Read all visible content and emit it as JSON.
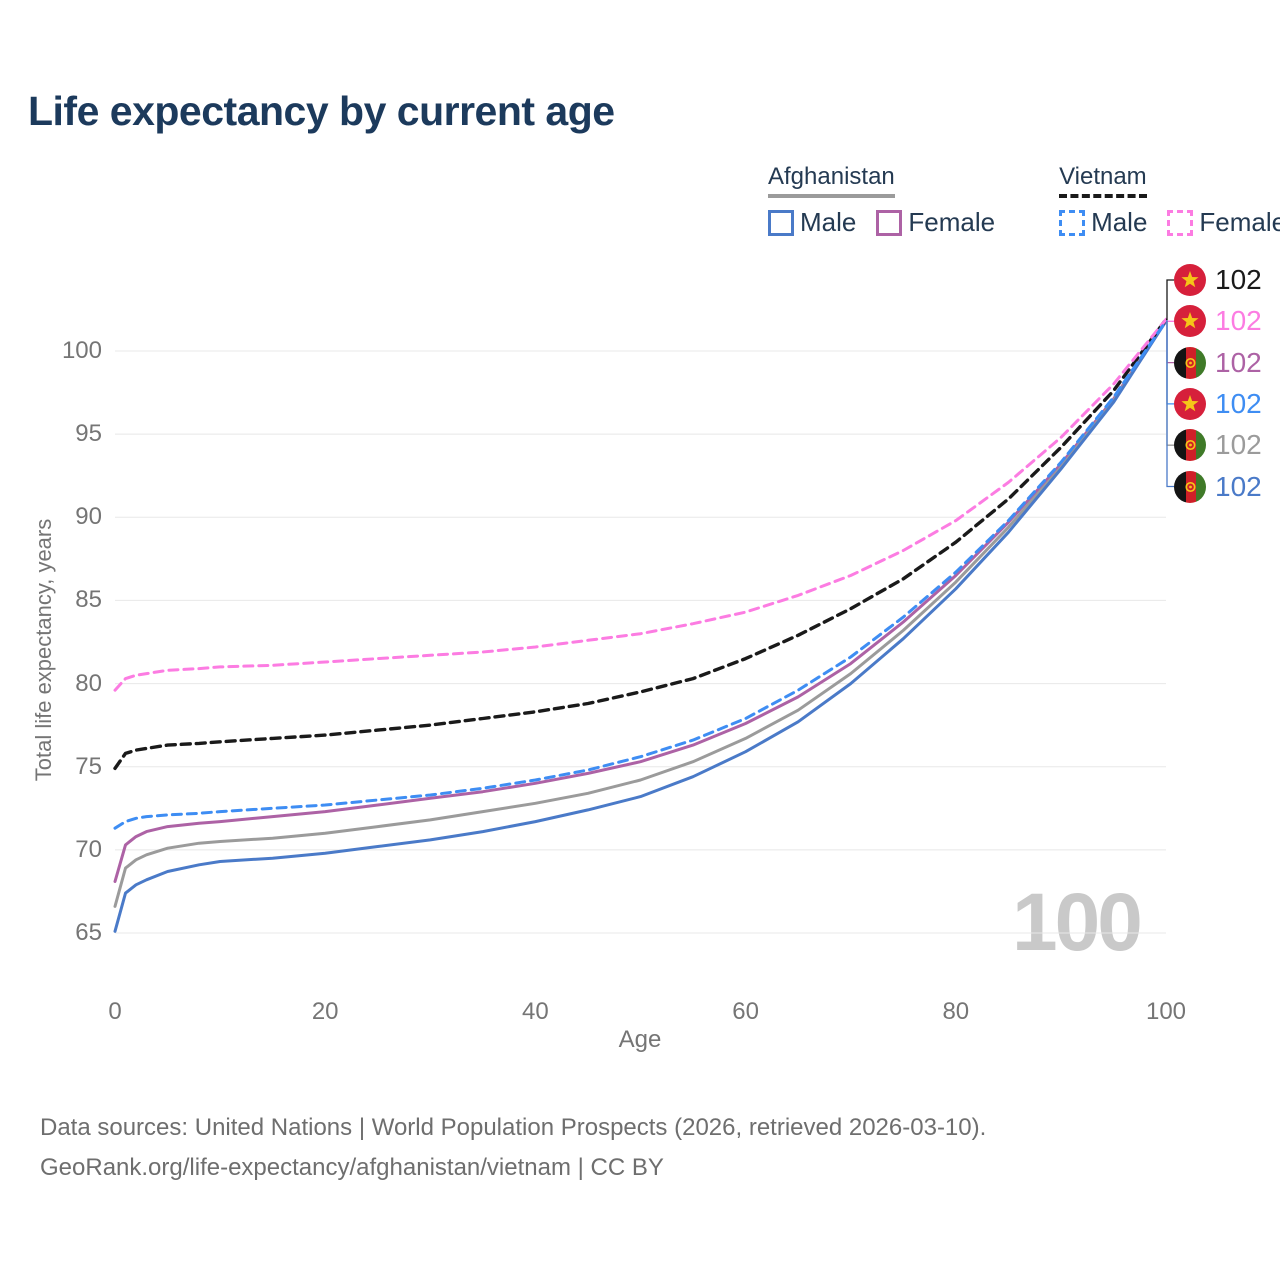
{
  "title": "Life expectancy by current age",
  "watermark": "100",
  "footer": {
    "line1": "Data sources: United Nations | World Population Prospects (2026, retrieved 2026-03-10).",
    "line2": "GeoRank.org/life-expectancy/afghanistan/vietnam | CC BY"
  },
  "legend": {
    "groups": [
      {
        "name": "Afghanistan",
        "underline_style": "solid",
        "underline_color": "#9b9b9b",
        "items": [
          {
            "label": "Male",
            "color": "#4a7ac8",
            "dashed": false
          },
          {
            "label": "Female",
            "color": "#ad62a5",
            "dashed": false
          }
        ]
      },
      {
        "name": "Vietnam",
        "underline_style": "dashed",
        "underline_color": "#1a1a1a",
        "items": [
          {
            "label": "Male",
            "color": "#3e8df3",
            "dashed": true
          },
          {
            "label": "Female",
            "color": "#fc7ce2",
            "dashed": true
          }
        ]
      }
    ]
  },
  "chart_data": {
    "type": "line",
    "title": "Life expectancy by current age",
    "xlabel": "Age",
    "ylabel": "Total life expectancy, years",
    "xlim": [
      0,
      100
    ],
    "ylim": [
      65,
      102.5
    ],
    "xticks": [
      0,
      20,
      40,
      60,
      80,
      100
    ],
    "yticks": [
      65,
      70,
      75,
      80,
      85,
      90,
      95,
      100
    ],
    "grid": true,
    "gridline_color": "#e8e8e8",
    "ages": [
      0,
      1,
      2,
      3,
      5,
      8,
      10,
      15,
      20,
      25,
      30,
      35,
      40,
      45,
      50,
      55,
      60,
      65,
      70,
      75,
      80,
      85,
      90,
      95,
      100
    ],
    "series": [
      {
        "name": "Vietnam Both sexes",
        "country": "Vietnam",
        "flag": "vn",
        "sex": "both",
        "color": "#1a1a1a",
        "dashed": true,
        "end_label": "102",
        "values": [
          74.9,
          75.8,
          76.0,
          76.1,
          76.3,
          76.4,
          76.5,
          76.7,
          76.9,
          77.2,
          77.5,
          77.9,
          78.3,
          78.8,
          79.5,
          80.3,
          81.5,
          82.9,
          84.5,
          86.3,
          88.5,
          91.1,
          94.2,
          97.6,
          101.9
        ]
      },
      {
        "name": "Vietnam Female",
        "country": "Vietnam",
        "flag": "vn",
        "sex": "female",
        "color": "#fc7ce2",
        "dashed": true,
        "end_label": "102",
        "values": [
          79.6,
          80.3,
          80.5,
          80.6,
          80.8,
          80.9,
          81.0,
          81.1,
          81.3,
          81.5,
          81.7,
          81.9,
          82.2,
          82.6,
          83.0,
          83.6,
          84.3,
          85.3,
          86.5,
          88.0,
          89.8,
          92.1,
          94.8,
          98.0,
          101.9
        ]
      },
      {
        "name": "Afghanistan Female",
        "country": "Afghanistan",
        "flag": "af",
        "sex": "female",
        "color": "#ad62a5",
        "dashed": false,
        "end_label": "102",
        "values": [
          68.1,
          70.3,
          70.8,
          71.1,
          71.4,
          71.6,
          71.7,
          72.0,
          72.3,
          72.7,
          73.1,
          73.5,
          74.0,
          74.6,
          75.3,
          76.3,
          77.6,
          79.2,
          81.2,
          83.7,
          86.5,
          89.7,
          93.2,
          97.1,
          101.8
        ]
      },
      {
        "name": "Vietnam Male",
        "country": "Vietnam",
        "flag": "vn",
        "sex": "male",
        "color": "#3e8df3",
        "dashed": true,
        "end_label": "102",
        "values": [
          71.3,
          71.7,
          71.9,
          72.0,
          72.1,
          72.2,
          72.3,
          72.5,
          72.7,
          73.0,
          73.3,
          73.7,
          74.2,
          74.8,
          75.6,
          76.6,
          77.9,
          79.6,
          81.6,
          84.0,
          86.7,
          89.8,
          93.3,
          97.2,
          101.8
        ]
      },
      {
        "name": "Afghanistan Both sexes",
        "country": "Afghanistan",
        "flag": "af",
        "sex": "both",
        "color": "#9b9b9b",
        "dashed": false,
        "end_label": "102",
        "values": [
          66.6,
          68.9,
          69.4,
          69.7,
          70.1,
          70.4,
          70.5,
          70.7,
          71.0,
          71.4,
          71.8,
          72.3,
          72.8,
          73.4,
          74.2,
          75.3,
          76.7,
          78.4,
          80.6,
          83.2,
          86.1,
          89.4,
          93.0,
          97.0,
          101.8
        ]
      },
      {
        "name": "Afghanistan Male",
        "country": "Afghanistan",
        "flag": "af",
        "sex": "male",
        "color": "#4a7ac8",
        "dashed": false,
        "end_label": "102",
        "values": [
          65.1,
          67.4,
          67.9,
          68.2,
          68.7,
          69.1,
          69.3,
          69.5,
          69.8,
          70.2,
          70.6,
          71.1,
          71.7,
          72.4,
          73.2,
          74.4,
          75.9,
          77.7,
          80.0,
          82.7,
          85.7,
          89.1,
          92.9,
          96.9,
          101.8
        ]
      }
    ],
    "legend_position": "top-right",
    "flag_colors": {
      "vn_red": "#d6203b",
      "vn_star": "#f5c518",
      "af_black": "#141414",
      "af_red": "#cf2028",
      "af_green": "#3f7a28",
      "af_emblem": "#f5c518"
    }
  }
}
